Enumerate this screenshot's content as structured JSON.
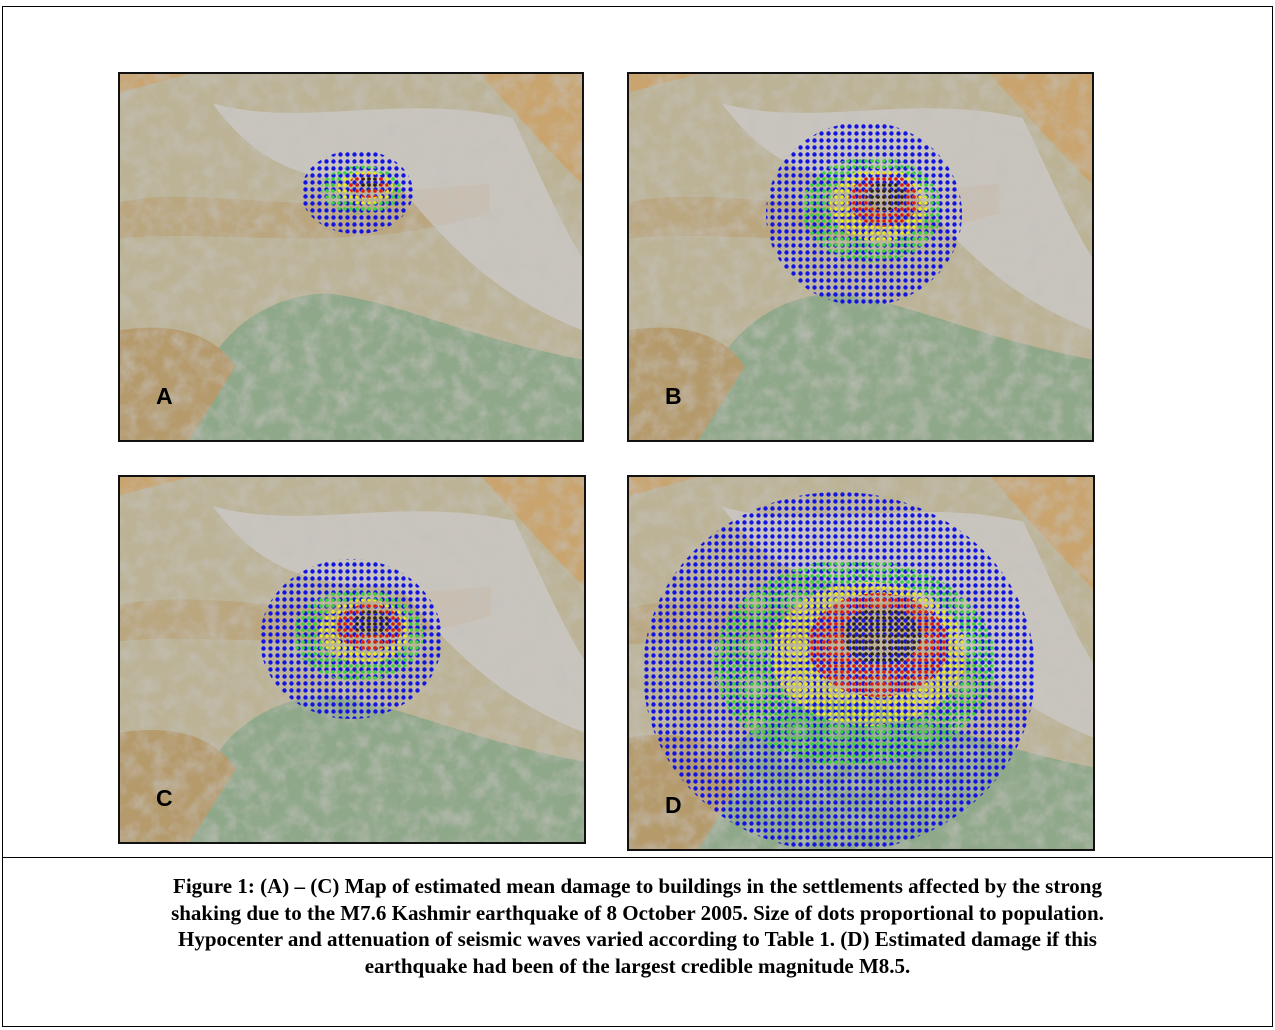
{
  "figure": {
    "panels": [
      {
        "label": "A"
      },
      {
        "label": "B"
      },
      {
        "label": "C"
      },
      {
        "label": "D"
      }
    ],
    "caption": [
      "Figure 1:  (A) – (C) Map of estimated mean damage to buildings in the settlements affected by the strong",
      "shaking due to the M7.6 Kashmir earthquake of 8 October 2005.  Size of dots proportional to population.",
      "Hypocenter and attenuation of seismic waves varied according to Table 1. (D) Estimated damage if this",
      "earthquake had been of the largest credible magnitude M8.5."
    ]
  }
}
